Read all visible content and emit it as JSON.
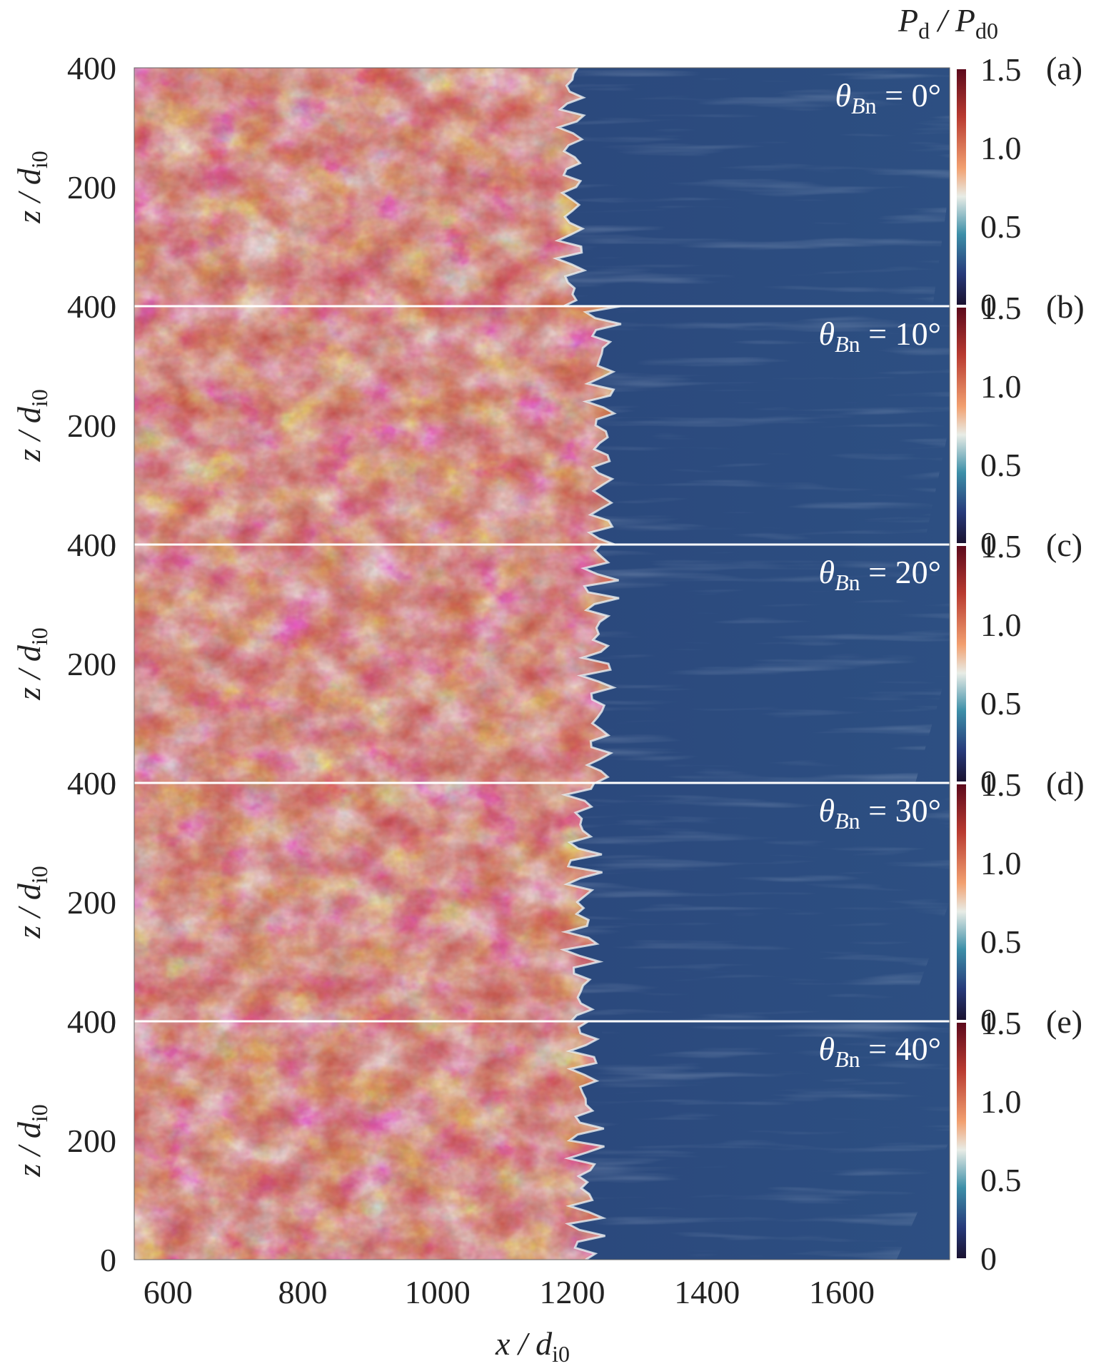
{
  "chart_data": {
    "type": "heatmap",
    "colorbar_label": "P_d / P_d0",
    "colorbar_ticks": [
      "1.5",
      "1.0",
      "0.5",
      "0"
    ],
    "colorbar_range": [
      0,
      1.5
    ],
    "x_label": "x / d_i0",
    "y_label": "z / d_i0",
    "x_ticks": [
      "600",
      "800",
      "1000",
      "1200",
      "1400",
      "1600"
    ],
    "x_range": [
      550,
      1760
    ],
    "y_ticks": [
      "400",
      "200",
      "0"
    ],
    "y_range": [
      0,
      400
    ],
    "panels": [
      {
        "id": "(a)",
        "theta_Bn": "0°",
        "shock_x": 1195
      },
      {
        "id": "(b)",
        "theta_Bn": "10°",
        "shock_x": 1240
      },
      {
        "id": "(c)",
        "theta_Bn": "20°",
        "shock_x": 1235
      },
      {
        "id": "(d)",
        "theta_Bn": "30°",
        "shock_x": 1210
      },
      {
        "id": "(e)",
        "theta_Bn": "40°",
        "shock_x": 1215
      }
    ]
  },
  "colors": {
    "upstream": "#2b4a7a",
    "downstream_low": "#a8c8dc",
    "downstream_high": "#8a1c26",
    "colormap": [
      "#1a1230",
      "#273a7a",
      "#3d8fa8",
      "#e8ece6",
      "#f2a070",
      "#b83a30",
      "#5c0a1c"
    ]
  }
}
